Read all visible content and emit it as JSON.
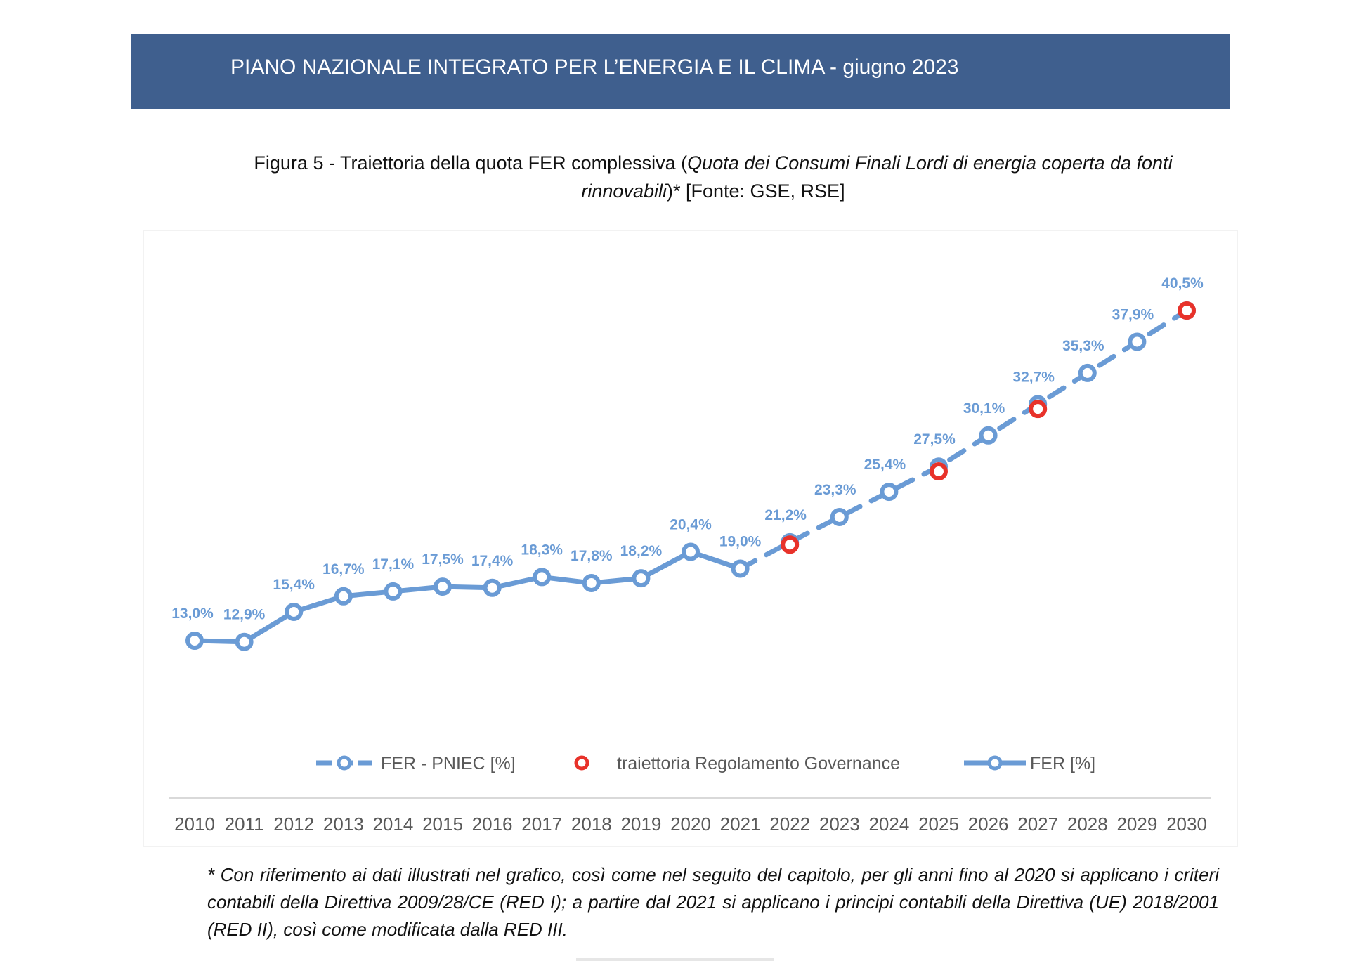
{
  "header": {
    "title": "PIANO NAZIONALE INTEGRATO PER L’ENERGIA E IL CLIMA - giugno 2023"
  },
  "caption": {
    "prefix": "Figura 5 - Traiettoria della quota FER complessiva (",
    "italic": "Quota dei Consumi Finali Lordi di energia coperta da fonti rinnovabili",
    "suffix": ")* [Fonte: GSE, RSE]"
  },
  "chart_data": {
    "type": "line",
    "title": "Figura 5 - Traiettoria della quota FER complessiva",
    "x": [
      2010,
      2011,
      2012,
      2013,
      2014,
      2015,
      2016,
      2017,
      2018,
      2019,
      2020,
      2021,
      2022,
      2023,
      2024,
      2025,
      2026,
      2027,
      2028,
      2029,
      2030
    ],
    "x_tick_labels": [
      "2010",
      "2011",
      "2012",
      "2013",
      "2014",
      "2015",
      "2016",
      "2017",
      "2018",
      "2019",
      "2020",
      "2021",
      "2022",
      "2023",
      "2024",
      "2025",
      "2026",
      "2027",
      "2028",
      "2029",
      "2030"
    ],
    "ylim": [
      13,
      40.5
    ],
    "grid": false,
    "legend_position": "bottom",
    "series": [
      {
        "name": "FER [%]",
        "style": "solid",
        "color": "#6a9bd5",
        "x": [
          2010,
          2011,
          2012,
          2013,
          2014,
          2015,
          2016,
          2017,
          2018,
          2019,
          2020,
          2021
        ],
        "values": [
          13.0,
          12.9,
          15.4,
          16.7,
          17.1,
          17.5,
          17.4,
          18.3,
          17.8,
          18.2,
          20.4,
          19.0
        ],
        "labels": [
          "13,0%",
          "12,9%",
          "15,4%",
          "16,7%",
          "17,1%",
          "17,5%",
          "17,4%",
          "18,3%",
          "17,8%",
          "18,2%",
          "20,4%",
          "19,0%"
        ]
      },
      {
        "name": "FER - PNIEC [%]",
        "style": "dashed",
        "color": "#6a9bd5",
        "x": [
          2021,
          2022,
          2023,
          2024,
          2025,
          2026,
          2027,
          2028,
          2029,
          2030
        ],
        "values": [
          19.0,
          21.2,
          23.3,
          25.4,
          27.5,
          30.1,
          32.7,
          35.3,
          37.9,
          40.5
        ],
        "labels": [
          "",
          "21,2%",
          "23,3%",
          "25,4%",
          "27,5%",
          "30,1%",
          "32,7%",
          "35,3%",
          "37,9%",
          "40,5%"
        ]
      },
      {
        "name": "traiettoria Regolamento Governance",
        "style": "markers",
        "color": "#e8322a",
        "x": [
          2022,
          2025,
          2027,
          2030
        ],
        "values": [
          21.0,
          27.1,
          32.3,
          40.5
        ]
      }
    ],
    "legend": [
      "FER - PNIEC [%]",
      "traiettoria Regolamento Governance",
      "FER [%]"
    ]
  },
  "footnote": "* Con riferimento ai dati illustrati nel grafico, così come nel seguito del capitolo, per gli anni fino al 2020 si applicano i criteri contabili della Direttiva 2009/28/CE (RED I); a partire dal 2021 si applicano i principi contabili della Direttiva (UE) 2018/2001 (RED II), così come modificata dalla RED III."
}
